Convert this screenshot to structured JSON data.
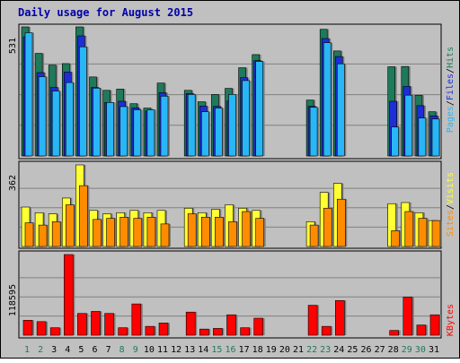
{
  "chart_data": {
    "type": "bar",
    "title": "Daily usage for August 2015",
    "days": [
      "1",
      "2",
      "3",
      "4",
      "5",
      "6",
      "7",
      "8",
      "9",
      "10",
      "11",
      "12",
      "13",
      "14",
      "15",
      "16",
      "17",
      "18",
      "19",
      "20",
      "21",
      "22",
      "23",
      "24",
      "25",
      "26",
      "27",
      "28",
      "29",
      "30",
      "31"
    ],
    "weekend_days": [
      "1",
      "2",
      "8",
      "9",
      "15",
      "16",
      "22",
      "23",
      "29",
      "30"
    ],
    "panels": {
      "hits_files_pages": {
        "ymax_label": "531",
        "ylim": [
          0,
          531
        ],
        "legend": [
          "Pages",
          "Files",
          "Hits"
        ],
        "series": [
          {
            "name": "Hits",
            "color": "#1e7a5a",
            "values": [
              531,
              422,
              374,
              380,
              531,
              325,
              270,
              275,
              215,
              197,
              300,
              0,
              270,
              223,
              253,
              278,
              363,
              417,
              0,
              0,
              0,
              230,
              521,
              432,
              0,
              0,
              0,
              367,
              368,
              250,
              182
            ]
          },
          {
            "name": "Files",
            "color": "#1d2ed6",
            "values": [
              490,
              343,
              282,
              345,
              494,
              282,
              220,
              225,
              198,
              185,
              260,
              0,
              257,
              205,
              204,
              226,
              322,
              392,
              0,
              0,
              0,
              204,
              483,
              409,
              0,
              0,
              0,
              225,
              286,
              207,
              165
            ]
          },
          {
            "name": "Pages",
            "color": "#29b6f6",
            "values": [
              507,
              326,
              267,
              302,
              449,
              279,
              220,
              203,
              190,
              190,
              246,
              0,
              253,
              182,
              197,
              253,
              310,
              389,
              0,
              0,
              0,
              200,
              466,
              379,
              0,
              0,
              0,
              119,
              250,
              156,
              152
            ]
          }
        ]
      },
      "visits_sites": {
        "ymax_label": "362",
        "ylim": [
          0,
          362
        ],
        "legend": [
          "Sites",
          "Visits"
        ],
        "series": [
          {
            "name": "Visits",
            "color": "#ffff33",
            "values": [
              175,
              150,
              145,
              215,
              362,
              160,
              145,
              150,
              160,
              150,
              160,
              0,
              170,
              150,
              165,
              185,
              170,
              160,
              0,
              0,
              0,
              110,
              240,
              280,
              0,
              0,
              0,
              190,
              195,
              150,
              115
            ]
          },
          {
            "name": "Sites",
            "color": "#ff8c00",
            "values": [
              105,
              95,
              110,
              185,
              270,
              120,
              125,
              130,
              125,
              130,
              100,
              0,
              145,
              130,
              130,
              110,
              155,
              125,
              0,
              0,
              0,
              95,
              170,
              210,
              0,
              0,
              0,
              70,
              155,
              125,
              115
            ]
          }
        ]
      },
      "kbytes": {
        "ymax_label": "118595",
        "ylim": [
          0,
          118595
        ],
        "legend": [
          "KBytes"
        ],
        "series": [
          {
            "name": "KBytes",
            "color": "#ff0000",
            "values": [
              22000,
              20000,
              11000,
              118595,
              32000,
              35000,
              32000,
              11000,
              46000,
              13000,
              18000,
              0,
              34000,
              9000,
              10000,
              30000,
              11000,
              25000,
              0,
              0,
              0,
              44000,
              13000,
              51000,
              0,
              0,
              0,
              7000,
              56000,
              15000,
              30000
            ]
          }
        ]
      }
    }
  }
}
